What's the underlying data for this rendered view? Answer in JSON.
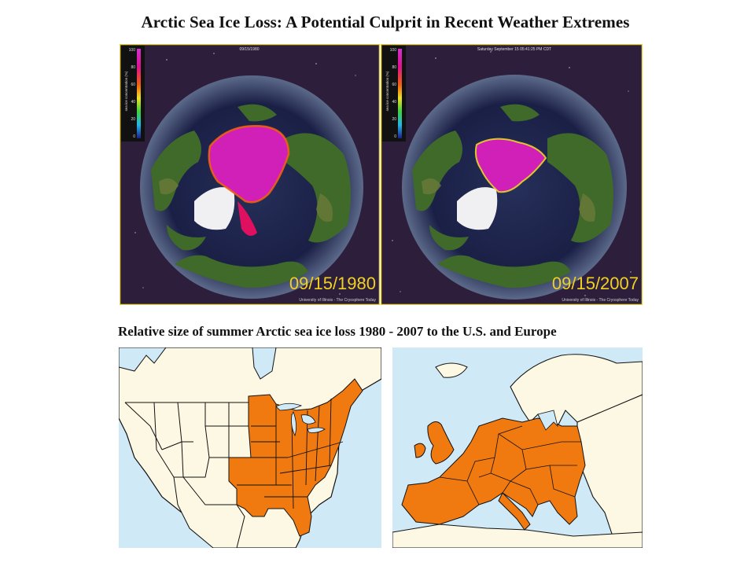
{
  "slide": {
    "title": "Arctic Sea Ice Loss: A Potential Culprit in Recent Weather Extremes"
  },
  "satellite_panels": [
    {
      "header": "09/15/1980",
      "date_label": "09/15/1980",
      "credit": "University of Illinois - The Cryosphere Today"
    },
    {
      "header": "Saturday September 15 05:41:25 PM CDT",
      "date_label": "09/15/2007",
      "credit": "University of Illinois - The Cryosphere Today"
    }
  ],
  "colorbar": {
    "label": "sea ice concentration (%)",
    "ticks": [
      "100",
      "80",
      "60",
      "40",
      "20",
      "0"
    ]
  },
  "map_comparison": {
    "caption": "Relative size of summer Arctic sea ice loss 1980 - 2007 to the U.S. and Europe"
  },
  "colors": {
    "ocean": "#cfe9f7",
    "land": "#fdf8e4",
    "highlight": "#f07a10",
    "space": "#2d1f3c",
    "ice": "#d020b8",
    "frame": "#e8d53b"
  }
}
